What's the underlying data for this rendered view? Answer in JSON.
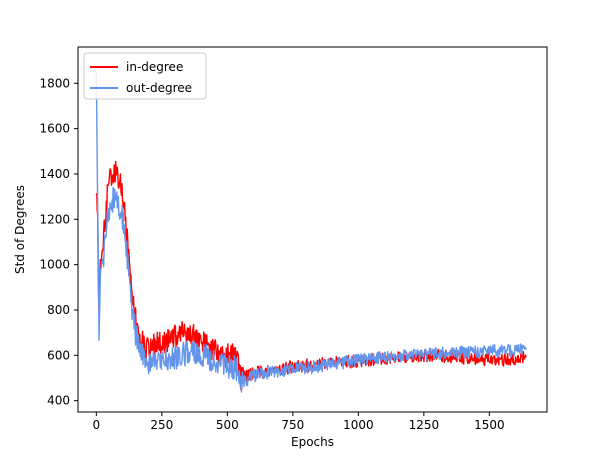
{
  "chart_data": {
    "type": "line",
    "xlabel": "Epochs",
    "ylabel": "Std of Degrees",
    "xlim": [
      -70,
      1720
    ],
    "ylim": [
      350,
      1960
    ],
    "xticks": [
      0,
      250,
      500,
      750,
      1000,
      1250,
      1500
    ],
    "yticks": [
      400,
      600,
      800,
      1000,
      1200,
      1400,
      1600,
      1800
    ],
    "grid": false,
    "legend_position": "top-left",
    "series": [
      {
        "name": "in-degree",
        "color": "#ff0000",
        "x": [
          0,
          5,
          10,
          15,
          20,
          30,
          40,
          50,
          60,
          70,
          80,
          90,
          100,
          110,
          120,
          130,
          140,
          150,
          160,
          170,
          180,
          190,
          200,
          225,
          250,
          275,
          300,
          325,
          350,
          375,
          400,
          425,
          450,
          475,
          500,
          525,
          540,
          550,
          575,
          600,
          650,
          700,
          750,
          800,
          850,
          900,
          950,
          1000,
          1050,
          1100,
          1150,
          1200,
          1250,
          1300,
          1350,
          1400,
          1450,
          1500,
          1550,
          1600,
          1640
        ],
        "y": [
          1340,
          1180,
          760,
          980,
          1050,
          1150,
          1290,
          1370,
          1410,
          1420,
          1390,
          1360,
          1300,
          1210,
          1100,
          940,
          820,
          760,
          690,
          660,
          650,
          640,
          630,
          650,
          650,
          660,
          680,
          700,
          690,
          680,
          660,
          640,
          620,
          600,
          600,
          610,
          580,
          500,
          510,
          520,
          530,
          540,
          550,
          555,
          560,
          565,
          570,
          575,
          580,
          585,
          590,
          595,
          600,
          600,
          595,
          590,
          585,
          580,
          580,
          585,
          590
        ]
      },
      {
        "name": "out-degree",
        "color": "#6495ed",
        "x": [
          0,
          5,
          10,
          15,
          20,
          30,
          40,
          50,
          60,
          70,
          80,
          90,
          100,
          110,
          120,
          130,
          140,
          150,
          160,
          170,
          180,
          190,
          200,
          225,
          250,
          275,
          300,
          325,
          350,
          375,
          400,
          425,
          450,
          475,
          500,
          525,
          540,
          550,
          575,
          600,
          650,
          700,
          750,
          800,
          850,
          900,
          950,
          1000,
          1050,
          1100,
          1150,
          1200,
          1250,
          1300,
          1350,
          1400,
          1450,
          1500,
          1550,
          1600,
          1640
        ],
        "y": [
          1900,
          1250,
          720,
          900,
          980,
          1060,
          1170,
          1240,
          1280,
          1300,
          1280,
          1250,
          1200,
          1110,
          1010,
          870,
          770,
          700,
          640,
          610,
          590,
          580,
          570,
          570,
          570,
          580,
          590,
          600,
          610,
          620,
          610,
          590,
          570,
          560,
          550,
          550,
          530,
          470,
          490,
          510,
          520,
          530,
          540,
          545,
          550,
          560,
          570,
          580,
          585,
          590,
          595,
          600,
          605,
          610,
          610,
          612,
          615,
          618,
          620,
          622,
          625
        ]
      }
    ]
  }
}
